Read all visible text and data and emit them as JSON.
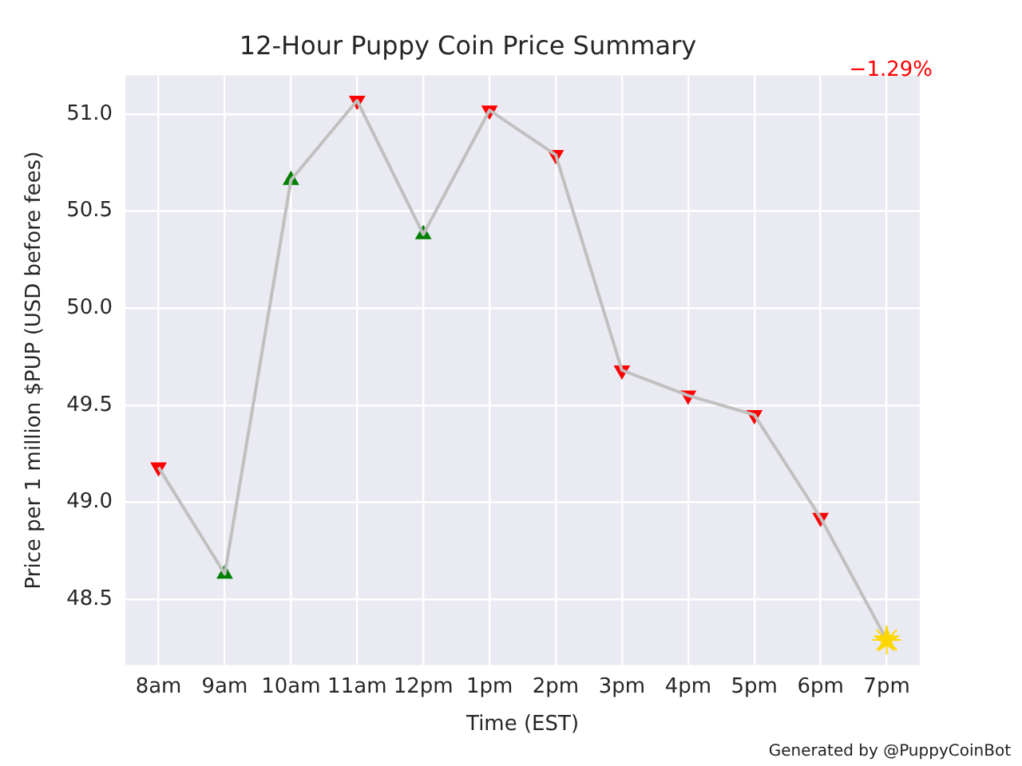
{
  "chart_data": {
    "type": "line",
    "title": "12-Hour Puppy Coin Price Summary",
    "xlabel": "Time (EST)",
    "ylabel": "Price per 1 million $PUP (USD before fees)",
    "categories": [
      "8am",
      "9am",
      "10am",
      "11am",
      "12pm",
      "1pm",
      "2pm",
      "3pm",
      "4pm",
      "5pm",
      "6pm",
      "7pm"
    ],
    "series": [
      {
        "color": "#c0c0c0",
        "marker": "none",
        "values": [
          49.18,
          48.63,
          50.66,
          51.07,
          50.38,
          51.02,
          50.79,
          49.68,
          49.55,
          49.45,
          48.92,
          48.29
        ]
      },
      {
        "type": "scatter",
        "color": "#008000",
        "marker": "triangle",
        "values": [
          null,
          48.63,
          50.66,
          null,
          50.38,
          null,
          null,
          null,
          null,
          null,
          null,
          null
        ]
      },
      {
        "type": "scatter",
        "color": "#ff0000",
        "marker": "triangle-down",
        "values": [
          49.18,
          null,
          null,
          51.07,
          null,
          51.02,
          50.79,
          49.68,
          49.55,
          49.45,
          48.92,
          null
        ]
      },
      {
        "type": "scatter",
        "color": "#ffd700",
        "marker": "star",
        "values": [
          null,
          null,
          null,
          null,
          null,
          null,
          null,
          null,
          null,
          null,
          null,
          48.29
        ]
      }
    ],
    "ylim": [
      48.16,
      51.2
    ],
    "yticks": [
      48.5,
      {
        "value": 49.0,
        "label": "49.0"
      },
      49.5,
      {
        "value": 50.0,
        "label": "50.0"
      },
      50.5,
      {
        "value": 51.0,
        "label": "51.0"
      }
    ],
    "grid": true,
    "legend": false,
    "annotations": [
      "−1.29%",
      "Generated by @PuppyCoinBot"
    ]
  }
}
